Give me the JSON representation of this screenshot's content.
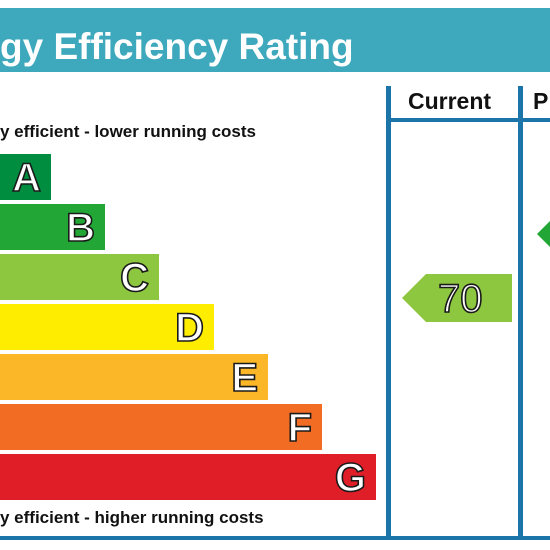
{
  "title": "gy Efficiency Rating",
  "columns": {
    "current": "Current",
    "potential": "P"
  },
  "captions": {
    "top": "y efficient - lower running costs",
    "bottom": "y efficient - higher running costs"
  },
  "chart_data": {
    "type": "bar",
    "categories": [
      "A",
      "B",
      "C",
      "D",
      "E",
      "F",
      "G"
    ],
    "band_colors": [
      "#008d3f",
      "#22a737",
      "#8dc63f",
      "#ffed00",
      "#fbb728",
      "#f26c24",
      "#e01e28"
    ],
    "current": {
      "value": "70",
      "band": "C",
      "color": "#8dc63f"
    },
    "potential": {
      "value": "",
      "band": "B",
      "color": "#22a737"
    }
  }
}
